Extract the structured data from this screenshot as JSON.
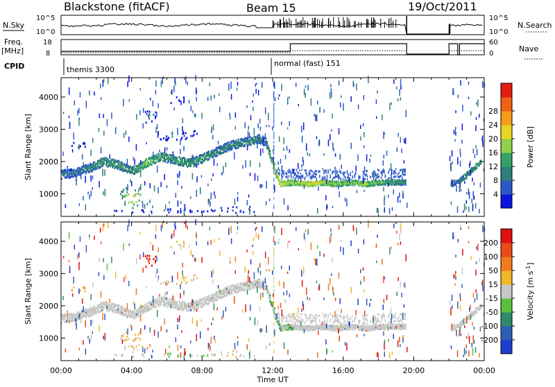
{
  "header": {
    "station": "Blackstone (fitACF)",
    "beam": "Beam 15",
    "date": "19/Oct/2011"
  },
  "panels": {
    "nsky": {
      "left_label": "N.Sky",
      "right_label": "N.Search",
      "left_ticks": [
        "10^5",
        "10^0"
      ],
      "right_ticks": [
        "10^5",
        "10^0"
      ]
    },
    "freq": {
      "left_label_1": "Freq.",
      "left_label_2": "[MHz]",
      "right_label": "Nave",
      "left_ticks": [
        "18",
        "8"
      ],
      "right_ticks": [
        "60",
        "0"
      ]
    },
    "cpid": {
      "label": "CPID",
      "modes": [
        "themis 3300",
        "normal (fast) 151"
      ]
    }
  },
  "chart_data": [
    {
      "type": "heatmap",
      "name": "power",
      "ylabel": "Slant Range [km]",
      "xlabel": "Time UT",
      "x_ticks": [
        "00:00",
        "04:00",
        "08:00",
        "12:00",
        "16:00",
        "20:00",
        "00:00"
      ],
      "y_ticks": [
        1000,
        2000,
        3000,
        4000
      ],
      "xlim_hours": [
        0,
        24
      ],
      "ylim_km": [
        300,
        4600
      ],
      "colorbar": {
        "label": "Power [dB]",
        "ticks": [
          "4",
          "8",
          "12",
          "16",
          "20",
          "24",
          "28"
        ],
        "colors": [
          "#0b16e0",
          "#2d59c8",
          "#2e7f78",
          "#36a06a",
          "#8fd04a",
          "#e6d622",
          "#f59a1a",
          "#f06016",
          "#e41c12"
        ]
      }
    },
    {
      "type": "heatmap",
      "name": "velocity",
      "ylabel": "Slant Range [km]",
      "xlabel": "Time UT",
      "x_ticks": [
        "00:00",
        "04:00",
        "08:00",
        "12:00",
        "16:00",
        "20:00",
        "00:00"
      ],
      "y_ticks": [
        1000,
        2000,
        3000,
        4000
      ],
      "xlim_hours": [
        0,
        24
      ],
      "ylim_km": [
        300,
        4600
      ],
      "colorbar": {
        "label": "Velocity [m s",
        "label_exp": "-1",
        "label_end": "]",
        "ticks": [
          "200",
          "100",
          "50",
          "15",
          "-15",
          "-50",
          "-100",
          "-200"
        ],
        "colors": [
          "#1e3ed0",
          "#2e5fb8",
          "#2e8a6a",
          "#5cc03a",
          "#c8c8c8",
          "#f2b62c",
          "#f07a1e",
          "#e94a18",
          "#e01010"
        ]
      }
    }
  ],
  "x_axis_label": "Time UT",
  "bands": {
    "power": [
      {
        "t": 0.0,
        "r": 1600,
        "p": 10
      },
      {
        "t": 0.8,
        "r": 1650,
        "p": 9
      },
      {
        "t": 1.6,
        "r": 1800,
        "p": 11
      },
      {
        "t": 2.4,
        "r": 2000,
        "p": 14
      },
      {
        "t": 3.2,
        "r": 1900,
        "p": 13
      },
      {
        "t": 4.0,
        "r": 1700,
        "p": 12
      },
      {
        "t": 4.8,
        "r": 1950,
        "p": 18
      },
      {
        "t": 5.6,
        "r": 2150,
        "p": 14
      },
      {
        "t": 6.4,
        "r": 2050,
        "p": 13
      },
      {
        "t": 7.2,
        "r": 1950,
        "p": 14
      },
      {
        "t": 8.0,
        "r": 2100,
        "p": 13
      },
      {
        "t": 8.8,
        "r": 2300,
        "p": 12
      },
      {
        "t": 9.6,
        "r": 2500,
        "p": 11
      },
      {
        "t": 10.4,
        "r": 2600,
        "p": 12
      },
      {
        "t": 11.2,
        "r": 2700,
        "p": 11
      },
      {
        "t": 11.6,
        "r": 2600,
        "p": 10
      },
      {
        "t": 12.0,
        "r": 1900,
        "p": 18
      },
      {
        "t": 12.4,
        "r": 1300,
        "p": 22
      },
      {
        "t": 13.2,
        "r": 1350,
        "p": 18
      },
      {
        "t": 14.0,
        "r": 1300,
        "p": 22
      },
      {
        "t": 14.8,
        "r": 1350,
        "p": 20
      },
      {
        "t": 15.6,
        "r": 1300,
        "p": 18
      },
      {
        "t": 16.4,
        "r": 1350,
        "p": 17
      },
      {
        "t": 17.2,
        "r": 1300,
        "p": 19
      },
      {
        "t": 18.0,
        "r": 1350,
        "p": 16
      },
      {
        "t": 18.8,
        "r": 1350,
        "p": 15
      },
      {
        "t": 19.5,
        "r": 1350,
        "p": 12
      }
    ],
    "tail": [
      {
        "t": 22.1,
        "r": 1300,
        "p": 8
      },
      {
        "t": 22.6,
        "r": 1400,
        "p": 9
      },
      {
        "t": 23.2,
        "r": 1700,
        "p": 10
      },
      {
        "t": 23.8,
        "r": 2000,
        "p": 12
      }
    ],
    "blobs": [
      {
        "t0": 3.3,
        "t1": 4.6,
        "r0": 550,
        "r1": 1200,
        "p": 24,
        "v": -15
      },
      {
        "t0": 4.6,
        "t1": 5.4,
        "r0": 3200,
        "r1": 3600,
        "p": 14,
        "v": -200
      },
      {
        "t0": 5.5,
        "t1": 7.7,
        "r0": 2650,
        "r1": 2950,
        "p": 10,
        "v": -15
      },
      {
        "t0": 0.2,
        "t1": 1.4,
        "r0": 2420,
        "r1": 2600,
        "p": 6,
        "v": -50
      },
      {
        "t0": 6.0,
        "t1": 7.0,
        "r0": 3800,
        "r1": 4000,
        "p": 6,
        "v": -15
      },
      {
        "t0": 9.0,
        "t1": 11.0,
        "r0": 400,
        "r1": 600,
        "p": 10,
        "v": -15
      },
      {
        "t0": 3.0,
        "t1": 9.0,
        "r0": 420,
        "r1": 520,
        "p": 6,
        "v": 15
      }
    ]
  }
}
